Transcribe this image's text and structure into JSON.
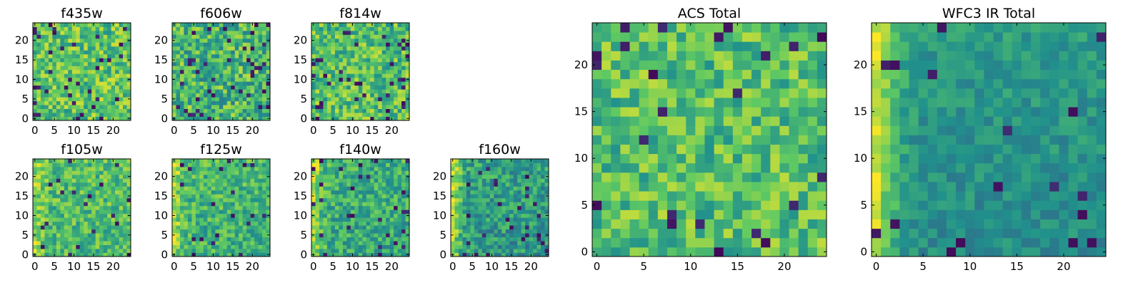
{
  "palette": [
    "#440154",
    "#3b528b",
    "#21918c",
    "#5ec962",
    "#fde725"
  ],
  "chart_data": [
    {
      "type": "heatmap",
      "title": "f435w",
      "grid_size": 25,
      "seed": 11,
      "base": 0.72,
      "spread": 0.22,
      "dark_fraction": 0.05,
      "gradient": 0.0,
      "xticks": [
        0,
        5,
        10,
        15,
        20
      ],
      "yticks": [
        0,
        5,
        10,
        15,
        20
      ]
    },
    {
      "type": "heatmap",
      "title": "f606w",
      "grid_size": 25,
      "seed": 23,
      "base": 0.66,
      "spread": 0.24,
      "dark_fraction": 0.06,
      "gradient": 0.0,
      "xticks": [
        0,
        5,
        10,
        15,
        20
      ],
      "yticks": [
        0,
        5,
        10,
        15,
        20
      ]
    },
    {
      "type": "heatmap",
      "title": "f814w",
      "grid_size": 25,
      "seed": 37,
      "base": 0.7,
      "spread": 0.22,
      "dark_fraction": 0.06,
      "gradient": 0.0,
      "xticks": [
        0,
        5,
        10,
        15,
        20
      ],
      "yticks": [
        0,
        5,
        10,
        15,
        20
      ]
    },
    {
      "type": "heatmap",
      "title": "f105w",
      "grid_size": 25,
      "seed": 41,
      "base": 0.68,
      "spread": 0.18,
      "dark_fraction": 0.04,
      "gradient": 0.15,
      "xticks": [
        0,
        5,
        10,
        15,
        20
      ],
      "yticks": [
        0,
        5,
        10,
        15,
        20
      ]
    },
    {
      "type": "heatmap",
      "title": "f125w",
      "grid_size": 25,
      "seed": 53,
      "base": 0.64,
      "spread": 0.18,
      "dark_fraction": 0.04,
      "gradient": 0.25,
      "xticks": [
        0,
        5,
        10,
        15,
        20
      ],
      "yticks": [
        0,
        5,
        10,
        15,
        20
      ]
    },
    {
      "type": "heatmap",
      "title": "f140w",
      "grid_size": 25,
      "seed": 67,
      "base": 0.6,
      "spread": 0.18,
      "dark_fraction": 0.04,
      "gradient": 0.3,
      "xticks": [
        0,
        5,
        10,
        15,
        20
      ],
      "yticks": [
        0,
        5,
        10,
        15,
        20
      ]
    },
    {
      "type": "heatmap",
      "title": "f160w",
      "grid_size": 25,
      "seed": 79,
      "base": 0.52,
      "spread": 0.18,
      "dark_fraction": 0.05,
      "gradient": 0.4,
      "xticks": [
        0,
        5,
        10,
        15,
        20
      ],
      "yticks": [
        0,
        5,
        10,
        15,
        20
      ]
    },
    {
      "type": "heatmap",
      "title": "ACS Total",
      "grid_size": 25,
      "seed": 97,
      "base": 0.7,
      "spread": 0.2,
      "dark_fraction": 0.04,
      "gradient": 0.0,
      "xticks": [
        0,
        5,
        10,
        15,
        20
      ],
      "yticks": [
        0,
        5,
        10,
        15,
        20
      ]
    },
    {
      "type": "heatmap",
      "title": "WFC3 IR Total",
      "grid_size": 25,
      "seed": 113,
      "base": 0.48,
      "spread": 0.1,
      "dark_fraction": 0.03,
      "gradient": 0.45,
      "xticks": [
        0,
        5,
        10,
        15,
        20
      ],
      "yticks": [
        0,
        5,
        10,
        15,
        20
      ]
    }
  ]
}
